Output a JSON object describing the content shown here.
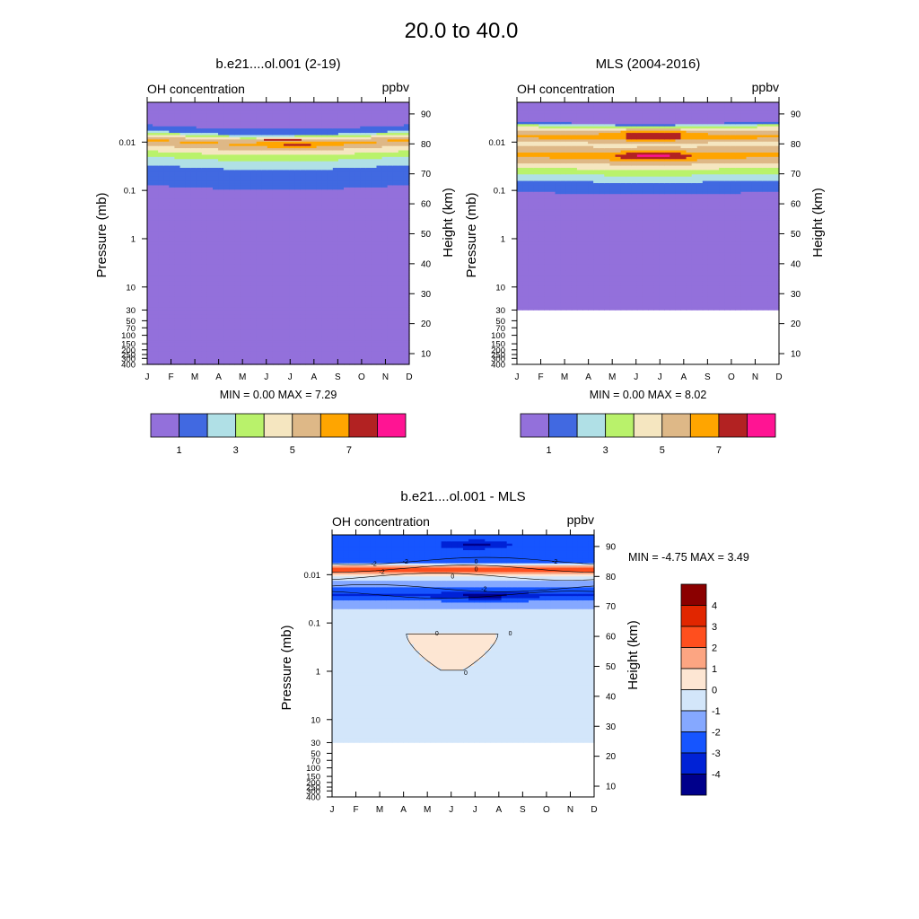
{
  "page_title": "20.0 to  40.0",
  "months": [
    "J",
    "F",
    "M",
    "A",
    "M",
    "J",
    "J",
    "A",
    "S",
    "O",
    "N",
    "D"
  ],
  "pressure_ticks": [
    {
      "p": 0.01,
      "label": "0.01"
    },
    {
      "p": 0.1,
      "label": "0.1"
    },
    {
      "p": 1,
      "label": "1"
    },
    {
      "p": 10,
      "label": "10"
    },
    {
      "p": 30,
      "label": "30"
    },
    {
      "p": 50,
      "label": "50"
    },
    {
      "p": 70,
      "label": "70"
    },
    {
      "p": 100,
      "label": "100"
    },
    {
      "p": 150,
      "label": "150"
    },
    {
      "p": 200,
      "label": "200"
    },
    {
      "p": 250,
      "label": "250"
    },
    {
      "p": 300,
      "label": "300"
    },
    {
      "p": 400,
      "label": "400"
    }
  ],
  "height_ticks": [
    90,
    80,
    70,
    60,
    50,
    40,
    30,
    20,
    10
  ],
  "yaxis_left_label": "Pressure (mb)",
  "yaxis_right_label": "Height (km)",
  "legend_colors": [
    "#9370db",
    "#4169e1",
    "#b0e0e6",
    "#b9f26b",
    "#f5e6c0",
    "#deb887",
    "#ffa500",
    "#b22222",
    "#ff1493"
  ],
  "legend_labels": [
    "1",
    "3",
    "5",
    "7"
  ],
  "diff_colors": [
    "#00008b",
    "#0022d6",
    "#1655ff",
    "#85a8ff",
    "#d3e6fa",
    "#fde6d3",
    "#fca582",
    "#ff4f1e",
    "#e12600",
    "#8b0000"
  ],
  "diff_labels": [
    "4",
    "3",
    "2",
    "1",
    "0",
    "-1",
    "-2",
    "-3",
    "-4"
  ],
  "chart_data": [
    {
      "type": "heatmap",
      "title": "b.e21....ol.001 (2-19)",
      "left_label": "OH concentration",
      "units": "ppbv",
      "stats": "MIN =   0.00  MAX =   7.29",
      "min": 0.0,
      "max": 7.29,
      "xlabel": "",
      "ylabel": "Pressure (mb)",
      "ylim_mb": [
        400,
        0.0015
      ],
      "profile_mb": [
        [
          0.0015,
          0.4
        ],
        [
          0.004,
          0.8
        ],
        [
          0.0055,
          1.5
        ],
        [
          0.0065,
          3.5
        ],
        [
          0.008,
          5.5
        ],
        [
          0.009,
          6.2
        ],
        [
          0.011,
          5.3
        ],
        [
          0.014,
          4.3
        ],
        [
          0.018,
          3.3
        ],
        [
          0.025,
          2.3
        ],
        [
          0.04,
          1.5
        ],
        [
          0.07,
          1.1
        ],
        [
          0.12,
          0.6
        ],
        [
          400,
          0.3
        ]
      ],
      "seasonal_shift_decades": 0.1
    },
    {
      "type": "heatmap",
      "title": "MLS (2004-2016)",
      "left_label": "OH concentration",
      "units": "ppbv",
      "stats": "MIN =   0.00  MAX =   8.02",
      "min": 0.0,
      "max": 8.02,
      "xlabel": "",
      "ylabel": "Pressure (mb)",
      "ylim_mb": [
        400,
        0.0015
      ],
      "data_bottom_mb": 30,
      "profile_mb": [
        [
          0.0015,
          0.0
        ],
        [
          0.0035,
          0.0
        ],
        [
          0.0045,
          3.5
        ],
        [
          0.0055,
          5.0
        ],
        [
          0.0075,
          6.5
        ],
        [
          0.01,
          4.6
        ],
        [
          0.013,
          5.3
        ],
        [
          0.018,
          6.5
        ],
        [
          0.025,
          5.2
        ],
        [
          0.035,
          3.8
        ],
        [
          0.05,
          2.6
        ],
        [
          0.07,
          1.6
        ],
        [
          0.1,
          1.1
        ],
        [
          0.15,
          0.5
        ],
        [
          30,
          0.4
        ]
      ],
      "seasonal_shift_decades": 0.05
    },
    {
      "type": "heatmap",
      "title": "b.e21....ol.001 - MLS",
      "left_label": "OH concentration",
      "units": "ppbv",
      "stats": "MIN =  -4.75  MAX =   3.49",
      "min": -4.75,
      "max": 3.49,
      "xlabel": "",
      "ylabel": "Pressure (mb)",
      "ylim_mb": [
        400,
        0.0015
      ],
      "data_bottom_mb": 30,
      "contour_labels": [
        "-2",
        "0",
        "-2",
        "-2",
        "0",
        "-2",
        "0",
        "-2",
        "0",
        "0",
        "0"
      ],
      "profile_mb": [
        [
          0.0015,
          -2.6
        ],
        [
          0.004,
          -2.6
        ],
        [
          0.0055,
          -2.2
        ],
        [
          0.007,
          1.5
        ],
        [
          0.0085,
          3.0
        ],
        [
          0.01,
          0.4
        ],
        [
          0.012,
          -0.5
        ],
        [
          0.015,
          -1.4
        ],
        [
          0.02,
          -2.4
        ],
        [
          0.027,
          -3.2
        ],
        [
          0.035,
          -2.0
        ],
        [
          0.045,
          -1.4
        ],
        [
          0.06,
          -0.5
        ],
        [
          30,
          -0.5
        ]
      ],
      "bubble": {
        "value": 0.5,
        "p_top": 0.17,
        "p_bottom": 0.95,
        "month_start": 3.4,
        "month_end": 7.6
      }
    }
  ]
}
